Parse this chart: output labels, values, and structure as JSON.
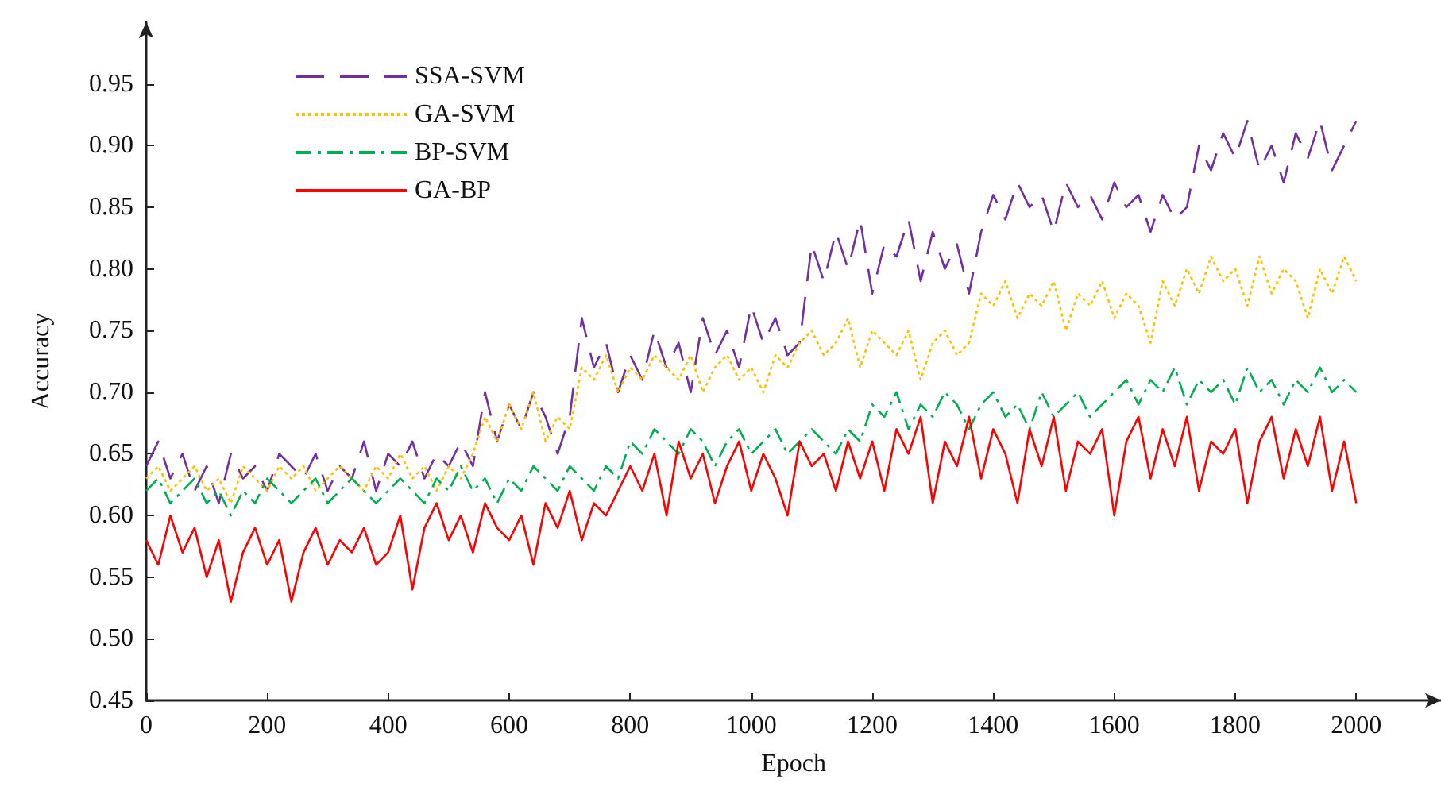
{
  "chart_data": {
    "type": "line",
    "xlabel": "Epoch",
    "ylabel": "Accuracy",
    "x": [
      0,
      20,
      40,
      60,
      80,
      100,
      120,
      140,
      160,
      180,
      200,
      220,
      240,
      260,
      280,
      300,
      320,
      340,
      360,
      380,
      400,
      420,
      440,
      460,
      480,
      500,
      520,
      540,
      560,
      580,
      600,
      620,
      640,
      660,
      680,
      700,
      720,
      740,
      760,
      780,
      800,
      820,
      840,
      860,
      880,
      900,
      920,
      940,
      960,
      980,
      1000,
      1020,
      1040,
      1060,
      1080,
      1100,
      1120,
      1140,
      1160,
      1180,
      1200,
      1220,
      1240,
      1260,
      1280,
      1300,
      1320,
      1340,
      1360,
      1380,
      1400,
      1420,
      1440,
      1460,
      1480,
      1500,
      1520,
      1540,
      1560,
      1580,
      1600,
      1620,
      1640,
      1660,
      1680,
      1700,
      1720,
      1740,
      1760,
      1780,
      1800,
      1820,
      1840,
      1860,
      1880,
      1900,
      1920,
      1940,
      1960,
      1980,
      2000
    ],
    "xlim": [
      0,
      2140
    ],
    "xticks": [
      0,
      200,
      400,
      600,
      800,
      1000,
      1200,
      1400,
      1600,
      1800,
      2000
    ],
    "ylim": [
      0.45,
      1.0
    ],
    "yticks": [
      0.45,
      {
        "value": 0.5,
        "label": "0.50"
      },
      0.55,
      {
        "value": 0.6,
        "label": "0.60"
      },
      0.65,
      {
        "value": 0.7,
        "label": "0.70"
      },
      0.75,
      {
        "value": 0.8,
        "label": "0.80"
      },
      0.85,
      {
        "value": 0.9,
        "label": "0.90"
      },
      0.95
    ],
    "grid": false,
    "legend": "top left",
    "marker": "none",
    "series": [
      {
        "name": "SSA-SVM",
        "color": "#7030a0",
        "line_style": "dashed",
        "values": [
          0.64,
          0.66,
          0.63,
          0.65,
          0.62,
          0.64,
          0.61,
          0.65,
          0.63,
          0.64,
          0.62,
          0.65,
          0.64,
          0.63,
          0.65,
          0.62,
          0.64,
          0.63,
          0.66,
          0.62,
          0.65,
          0.64,
          0.66,
          0.63,
          0.65,
          0.64,
          0.66,
          0.64,
          0.7,
          0.66,
          0.69,
          0.67,
          0.7,
          0.68,
          0.65,
          0.68,
          0.76,
          0.72,
          0.74,
          0.7,
          0.73,
          0.71,
          0.75,
          0.72,
          0.74,
          0.7,
          0.76,
          0.73,
          0.75,
          0.72,
          0.77,
          0.74,
          0.76,
          0.73,
          0.74,
          0.82,
          0.79,
          0.83,
          0.8,
          0.84,
          0.78,
          0.82,
          0.81,
          0.84,
          0.79,
          0.83,
          0.8,
          0.82,
          0.78,
          0.83,
          0.86,
          0.84,
          0.87,
          0.85,
          0.86,
          0.83,
          0.87,
          0.85,
          0.86,
          0.84,
          0.87,
          0.85,
          0.86,
          0.83,
          0.86,
          0.84,
          0.85,
          0.9,
          0.88,
          0.91,
          0.89,
          0.92,
          0.88,
          0.9,
          0.87,
          0.91,
          0.89,
          0.92,
          0.88,
          0.9,
          0.92
        ]
      },
      {
        "name": "GA-SVM",
        "color": "#ffc000",
        "line_style": "dotted",
        "values": [
          0.63,
          0.64,
          0.62,
          0.63,
          0.64,
          0.62,
          0.63,
          0.61,
          0.64,
          0.63,
          0.62,
          0.64,
          0.63,
          0.64,
          0.62,
          0.63,
          0.64,
          0.63,
          0.62,
          0.64,
          0.63,
          0.65,
          0.63,
          0.64,
          0.62,
          0.64,
          0.63,
          0.65,
          0.68,
          0.66,
          0.69,
          0.67,
          0.7,
          0.66,
          0.68,
          0.67,
          0.72,
          0.71,
          0.73,
          0.7,
          0.72,
          0.71,
          0.73,
          0.72,
          0.71,
          0.73,
          0.7,
          0.72,
          0.73,
          0.71,
          0.72,
          0.7,
          0.73,
          0.72,
          0.74,
          0.75,
          0.73,
          0.74,
          0.76,
          0.72,
          0.75,
          0.74,
          0.73,
          0.75,
          0.71,
          0.74,
          0.75,
          0.73,
          0.74,
          0.78,
          0.77,
          0.79,
          0.76,
          0.78,
          0.77,
          0.79,
          0.75,
          0.78,
          0.77,
          0.79,
          0.76,
          0.78,
          0.77,
          0.74,
          0.79,
          0.77,
          0.8,
          0.78,
          0.81,
          0.79,
          0.8,
          0.77,
          0.81,
          0.78,
          0.8,
          0.79,
          0.76,
          0.8,
          0.78,
          0.81,
          0.79
        ]
      },
      {
        "name": "BP-SVM",
        "color": "#00b050",
        "line_style": "dashdot",
        "values": [
          0.62,
          0.63,
          0.61,
          0.62,
          0.63,
          0.61,
          0.62,
          0.6,
          0.62,
          0.61,
          0.63,
          0.62,
          0.61,
          0.62,
          0.63,
          0.61,
          0.62,
          0.63,
          0.62,
          0.61,
          0.62,
          0.63,
          0.62,
          0.61,
          0.63,
          0.62,
          0.64,
          0.62,
          0.63,
          0.61,
          0.63,
          0.62,
          0.64,
          0.63,
          0.62,
          0.64,
          0.63,
          0.62,
          0.64,
          0.63,
          0.66,
          0.65,
          0.67,
          0.66,
          0.65,
          0.67,
          0.66,
          0.64,
          0.66,
          0.67,
          0.65,
          0.66,
          0.67,
          0.65,
          0.66,
          0.67,
          0.66,
          0.65,
          0.67,
          0.66,
          0.69,
          0.68,
          0.7,
          0.67,
          0.69,
          0.68,
          0.7,
          0.69,
          0.67,
          0.69,
          0.7,
          0.68,
          0.69,
          0.67,
          0.7,
          0.68,
          0.69,
          0.7,
          0.68,
          0.69,
          0.7,
          0.71,
          0.69,
          0.71,
          0.7,
          0.72,
          0.69,
          0.71,
          0.7,
          0.71,
          0.69,
          0.72,
          0.7,
          0.71,
          0.69,
          0.71,
          0.7,
          0.72,
          0.7,
          0.71,
          0.7
        ]
      },
      {
        "name": "GA-BP",
        "color": "#ff0000",
        "line_style": "solid",
        "values": [
          0.58,
          0.56,
          0.6,
          0.57,
          0.59,
          0.55,
          0.58,
          0.53,
          0.57,
          0.59,
          0.56,
          0.58,
          0.53,
          0.57,
          0.59,
          0.56,
          0.58,
          0.57,
          0.59,
          0.56,
          0.57,
          0.6,
          0.54,
          0.59,
          0.61,
          0.58,
          0.6,
          0.57,
          0.61,
          0.59,
          0.58,
          0.6,
          0.56,
          0.61,
          0.59,
          0.62,
          0.58,
          0.61,
          0.6,
          0.62,
          0.64,
          0.62,
          0.65,
          0.6,
          0.66,
          0.63,
          0.65,
          0.61,
          0.64,
          0.66,
          0.62,
          0.65,
          0.63,
          0.6,
          0.66,
          0.64,
          0.65,
          0.62,
          0.66,
          0.63,
          0.66,
          0.62,
          0.67,
          0.65,
          0.68,
          0.61,
          0.66,
          0.64,
          0.68,
          0.63,
          0.67,
          0.65,
          0.61,
          0.67,
          0.64,
          0.68,
          0.62,
          0.66,
          0.65,
          0.67,
          0.6,
          0.66,
          0.68,
          0.63,
          0.67,
          0.64,
          0.68,
          0.62,
          0.66,
          0.65,
          0.67,
          0.61,
          0.66,
          0.68,
          0.63,
          0.67,
          0.64,
          0.68,
          0.62,
          0.66,
          0.61
        ]
      }
    ]
  }
}
